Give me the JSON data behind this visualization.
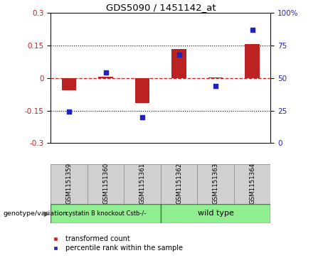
{
  "title": "GDS5090 / 1451142_at",
  "categories": [
    "GSM1151359",
    "GSM1151360",
    "GSM1151361",
    "GSM1151362",
    "GSM1151363",
    "GSM1151364"
  ],
  "red_values": [
    -0.055,
    0.005,
    -0.115,
    0.135,
    0.002,
    0.158
  ],
  "blue_values": [
    24,
    54,
    20,
    68,
    44,
    87
  ],
  "ylim_left": [
    -0.3,
    0.3
  ],
  "ylim_right": [
    0,
    100
  ],
  "yticks_left": [
    -0.3,
    -0.15,
    0.0,
    0.15,
    0.3
  ],
  "yticks_right": [
    0,
    25,
    50,
    75,
    100
  ],
  "hlines": [
    0.15,
    -0.15
  ],
  "red_color": "#bb2222",
  "blue_color": "#2222bb",
  "dashed_zero_color": "#cc2222",
  "group1_label": "cystatin B knockout Cstb-/-",
  "group2_label": "wild type",
  "group1_color": "#90ee90",
  "group2_color": "#90ee90",
  "group1_edge": "#338833",
  "group2_edge": "#338833",
  "genotype_label": "genotype/variation",
  "legend1": "transformed count",
  "legend2": "percentile rank within the sample",
  "bar_width": 0.4,
  "label_box_color": "#d0d0d0",
  "label_box_edge": "#999999"
}
